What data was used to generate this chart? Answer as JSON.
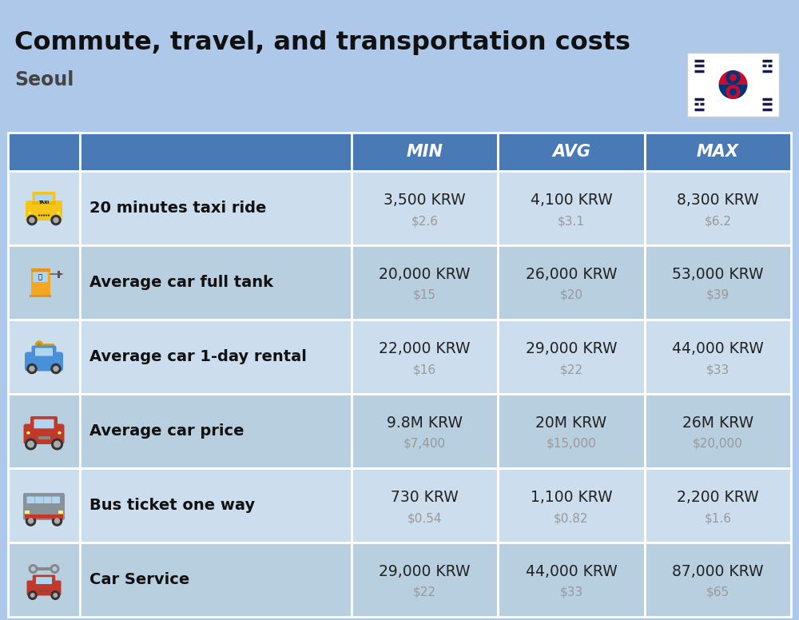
{
  "title": "Commute, travel, and transportation costs",
  "subtitle": "Seoul",
  "background_color": "#adc8e8",
  "header_color": "#4a7ab5",
  "row_color_light": "#ccdded",
  "row_color_dark": "#b8cfe0",
  "header_text_color": "#ffffff",
  "label_text_color": "#111111",
  "value_text_color": "#222222",
  "subvalue_text_color": "#999999",
  "col_headers": [
    "MIN",
    "AVG",
    "MAX"
  ],
  "rows": [
    {
      "label": "20 minutes taxi ride",
      "min_krw": "3,500 KRW",
      "min_usd": "$2.6",
      "avg_krw": "4,100 KRW",
      "avg_usd": "$3.1",
      "max_krw": "8,300 KRW",
      "max_usd": "$6.2"
    },
    {
      "label": "Average car full tank",
      "min_krw": "20,000 KRW",
      "min_usd": "$15",
      "avg_krw": "26,000 KRW",
      "avg_usd": "$20",
      "max_krw": "53,000 KRW",
      "max_usd": "$39"
    },
    {
      "label": "Average car 1-day rental",
      "min_krw": "22,000 KRW",
      "min_usd": "$16",
      "avg_krw": "29,000 KRW",
      "avg_usd": "$22",
      "max_krw": "44,000 KRW",
      "max_usd": "$33"
    },
    {
      "label": "Average car price",
      "min_krw": "9.8M KRW",
      "min_usd": "$7,400",
      "avg_krw": "20M KRW",
      "avg_usd": "$15,000",
      "max_krw": "26M KRW",
      "max_usd": "$20,000"
    },
    {
      "label": "Bus ticket one way",
      "min_krw": "730 KRW",
      "min_usd": "$0.54",
      "avg_krw": "1,100 KRW",
      "avg_usd": "$0.82",
      "max_krw": "2,200 KRW",
      "max_usd": "$1.6"
    },
    {
      "label": "Car Service",
      "min_krw": "29,000 KRW",
      "min_usd": "$22",
      "avg_krw": "44,000 KRW",
      "avg_usd": "$33",
      "max_krw": "87,000 KRW",
      "max_usd": "$65"
    }
  ]
}
